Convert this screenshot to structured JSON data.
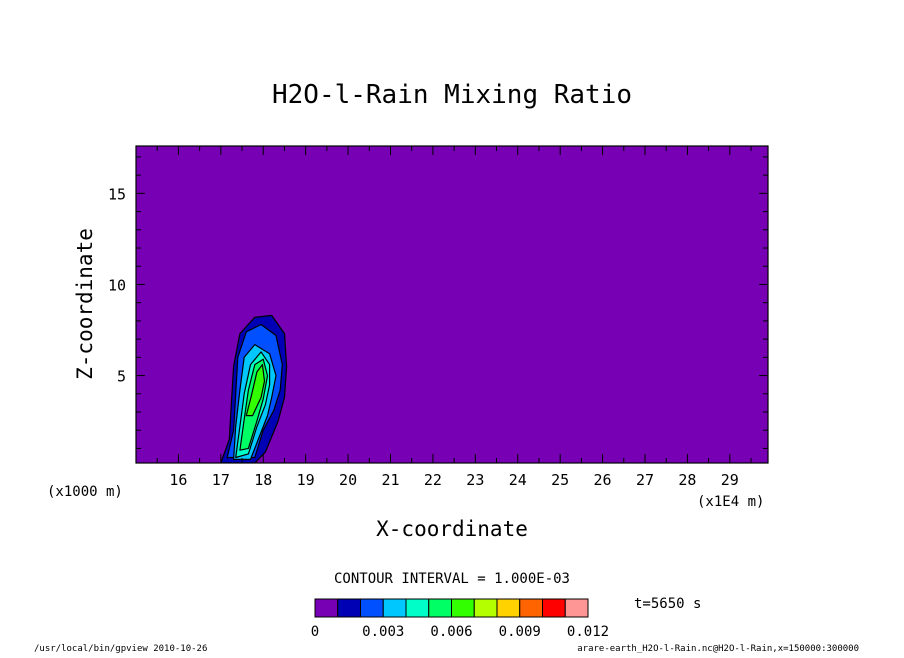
{
  "chart_data": {
    "type": "heatmap",
    "title": "H2O-l-Rain Mixing Ratio",
    "xlabel": "X-coordinate",
    "ylabel": "Z-coordinate",
    "x_unit": "(x1E4 m)",
    "y_unit": "(x1000 m)",
    "xlim": [
      15,
      29.9
    ],
    "ylim": [
      0.2,
      17.6
    ],
    "x_ticks": [
      "16",
      "17",
      "18",
      "19",
      "20",
      "21",
      "22",
      "23",
      "24",
      "25",
      "26",
      "27",
      "28",
      "29"
    ],
    "y_ticks": [
      "5",
      "10",
      "15"
    ],
    "background_color": "#7800b4",
    "contour_interval_label": "CONTOUR INTERVAL = 1.000E-03",
    "time_label": "t=5650 s",
    "colorbar": {
      "levels": [
        0,
        0.001,
        0.002,
        0.003,
        0.004,
        0.005,
        0.006,
        0.007,
        0.008,
        0.009,
        0.01,
        0.011,
        0.012
      ],
      "colors": [
        "#7800b4",
        "#0000b4",
        "#0050ff",
        "#00c8ff",
        "#00ffc8",
        "#00ff64",
        "#32ff00",
        "#b4ff00",
        "#ffd200",
        "#ff6400",
        "#ff0000",
        "#ff9696"
      ],
      "tick_labels": [
        "0",
        "0.003",
        "0.006",
        "0.009",
        "0.012"
      ]
    },
    "contours": [
      {
        "level": 0.001,
        "points": [
          [
            17.0,
            0.2
          ],
          [
            17.2,
            1.5
          ],
          [
            17.25,
            3.5
          ],
          [
            17.3,
            5.5
          ],
          [
            17.45,
            7.3
          ],
          [
            17.8,
            8.2
          ],
          [
            18.2,
            8.3
          ],
          [
            18.5,
            7.3
          ],
          [
            18.55,
            5.5
          ],
          [
            18.5,
            3.8
          ],
          [
            18.35,
            2.5
          ],
          [
            18.05,
            0.8
          ],
          [
            17.8,
            0.2
          ]
        ]
      },
      {
        "level": 0.002,
        "points": [
          [
            17.15,
            0.5
          ],
          [
            17.3,
            2
          ],
          [
            17.35,
            4
          ],
          [
            17.4,
            6
          ],
          [
            17.6,
            7.4
          ],
          [
            17.95,
            7.8
          ],
          [
            18.3,
            7.2
          ],
          [
            18.45,
            5.6
          ],
          [
            18.4,
            4.2
          ],
          [
            18.25,
            3.1
          ],
          [
            18.0,
            2.0
          ],
          [
            17.8,
            0.5
          ]
        ]
      },
      {
        "level": 0.003,
        "points": [
          [
            17.3,
            0.4
          ],
          [
            17.35,
            2.2
          ],
          [
            17.45,
            4.2
          ],
          [
            17.55,
            6
          ],
          [
            17.8,
            6.7
          ],
          [
            18.15,
            6.2
          ],
          [
            18.3,
            5.0
          ],
          [
            18.2,
            3.8
          ],
          [
            18.1,
            2.8
          ],
          [
            17.9,
            1.6
          ],
          [
            17.7,
            0.4
          ]
        ]
      },
      {
        "level": 0.004,
        "points": [
          [
            17.35,
            0.5
          ],
          [
            17.45,
            2.2
          ],
          [
            17.55,
            4.0
          ],
          [
            17.7,
            5.6
          ],
          [
            17.95,
            6.3
          ],
          [
            18.15,
            5.6
          ],
          [
            18.15,
            4.5
          ],
          [
            18.05,
            3.4
          ],
          [
            17.85,
            2.2
          ],
          [
            17.65,
            0.7
          ]
        ]
      },
      {
        "level": 0.005,
        "points": [
          [
            17.45,
            0.9
          ],
          [
            17.55,
            2.6
          ],
          [
            17.65,
            4.2
          ],
          [
            17.8,
            5.6
          ],
          [
            18.0,
            5.9
          ],
          [
            18.1,
            5.0
          ],
          [
            18.0,
            3.7
          ],
          [
            17.85,
            2.5
          ],
          [
            17.65,
            1.0
          ]
        ]
      },
      {
        "level": 0.006,
        "points": [
          [
            17.6,
            2.8
          ],
          [
            17.72,
            3.9
          ],
          [
            17.85,
            5.2
          ],
          [
            17.98,
            5.6
          ],
          [
            18.03,
            4.7
          ],
          [
            17.95,
            3.8
          ],
          [
            17.75,
            2.8
          ]
        ]
      }
    ]
  },
  "footer": {
    "left": "/usr/local/bin/gpview  2010-10-26",
    "right": "arare-earth_H2O-l-Rain.nc@H2O-l-Rain,x=150000:300000"
  }
}
